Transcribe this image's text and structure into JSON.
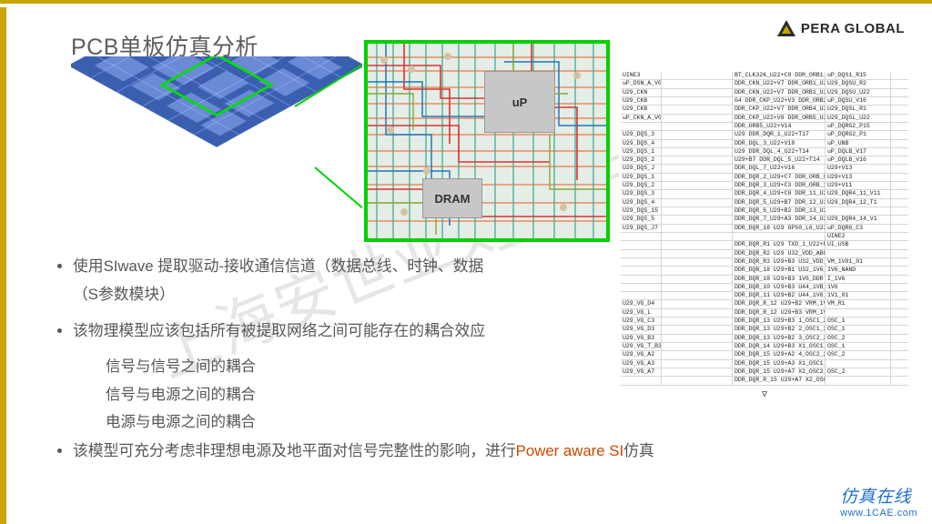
{
  "logo_text": "PERA GLOBAL",
  "title": "PCB单板仿真分析",
  "chips": {
    "up": "uP",
    "dram": "DRAM"
  },
  "bullets": {
    "b1_pre": "使用SIwave 提取驱动-接收通信信道（数据总线、时钟、数据",
    "b1_suf": "（S参数模块）",
    "b2": "该物理模型应该包括所有被提取网络之间可能存在的耦合效应",
    "s1": "信号与信号之间的耦合",
    "s2": "信号与电源之间的耦合",
    "s3": "电源与电源之间的耦合",
    "b3_pre": "该模型可充分考虑非理想电源及地平面对信号完整性的影响，进行",
    "b3_red": "Power aware SI",
    "b3_suf": "仿真"
  },
  "watermark": "上海安世亚太",
  "footer": {
    "cn": "仿真在线",
    "url": "www.1CAE.com"
  },
  "netlist_rows": [
    [
      "UINE3",
      "",
      "BT_CLK32K_U22+C8  DDR_ORB1_U22+R15",
      "uP_DQS1_R15"
    ],
    [
      "uP_DSN_A_V017",
      "",
      "DDR_CKN_U22+V7   DDR_ORB1_U22+R15",
      "U29_DQSU_R2"
    ],
    [
      "U29_CKN",
      "",
      "DDR_CKN_U22+V7   DDR_ORB1_U22+R16",
      "U29_DQSU_U22"
    ],
    [
      "U29_CKB",
      "",
      "G4  DDR_CKP_U22+V3   DDR_ORB2_U22+T15",
      "uP_DQSU_V16"
    ],
    [
      "U29_CKB",
      "",
      "DDR_CKP_U22+V7   DDR_ORB4_U22+V15",
      "U29_DQSL_R1"
    ],
    [
      "uP_CKN_A_V017",
      "",
      "DDR_CKP_U22+V8   DDR_ORB5_U22+V15",
      "U29_DQSL_U22"
    ],
    [
      "",
      "",
      "DDR_ORB5_U22+V14",
      "uP_DQRG2_P15"
    ],
    [
      "U29_DQS_3",
      "",
      "U29   DDR_DQR_1_U22+T17",
      "uP_DQRG2_P1"
    ],
    [
      "U29_DQS_4",
      "",
      "DDR_DQL_3_U22+V18",
      "uP_UNB"
    ],
    [
      "U29_DQS_1",
      "",
      "U29   DDR_DQL_4_U22+T14",
      "uP_DQLB_V17"
    ],
    [
      "U29_DQS_2",
      "",
      "U29+B7 DDR_DQL_5_U22+T14",
      "uP_DQLB_V16"
    ],
    [
      "U29_DQS_J",
      "",
      "DDR_DQL_7_U22+V16",
      "U29+V13"
    ],
    [
      "U29_DQS_1",
      "",
      "DDR_DQR_2_U29+C7 DDR_ORB_8_U22+V13",
      "U29+V13"
    ],
    [
      "U29_DQS_2",
      "",
      "DDR_DQR_3_U29+C3 DDR_ORB_18_U22+V11",
      "U29+V11"
    ],
    [
      "U29_DQS_3",
      "",
      "DDR_DQR_4_U29+C8 DDR_11_U22+V12",
      "U29_DQR4_11_V11"
    ],
    [
      "U29_DQS_4",
      "",
      "DDR_DQR_5_U29+B7 DDR_12_U22+V13",
      "U29_DQR4_12_T1"
    ],
    [
      "U29_DQS_15",
      "",
      "DDR_DQR_6_U29+B2 DDR_13_U22+V12",
      ""
    ],
    [
      "U29_DQS_5",
      "",
      "DDR_DQR_7_U29+A3 DDR_14_U22+V12",
      "U29_DQR4_14_V1"
    ],
    [
      "U29_DQS_J7",
      "",
      "DDR_DQR_18  U29   GPS0_L6_U22+R1",
      "uP_DQRG_C3"
    ],
    [
      "",
      "",
      "",
      "UINE2"
    ],
    [
      "",
      "",
      "DDR_DQR_R1  U29   TXD_1_U22+R5",
      "UI_USB"
    ],
    [
      "",
      "",
      "DDR_DQR_R2  U29   U32_VDD_ABCDED",
      ""
    ],
    [
      "",
      "",
      "DDR_DQR_R3  U29+B3 U32_VDD_CORE",
      "VM_1V01_01"
    ],
    [
      "",
      "",
      "DDR_DQR_18  U29+B1 U32_1V6_NAND",
      "1V6_NAND"
    ],
    [
      "",
      "",
      "DDR_DQR_18  U29+B3 1V6_DDR",
      "I_1V6"
    ],
    [
      "",
      "",
      "DDR_DQR_10  U29+B3 U44_1VB_DDR",
      "1V6"
    ],
    [
      "",
      "",
      "DDR_DQR_11  U29+B2 U44_1V6_O2",
      "1V1_01"
    ],
    [
      "U29_VG_D4",
      "",
      "DDR_DQR_R_12  U29+B2 VRM_1V1",
      "VM_R1"
    ],
    [
      "U29_VG_L",
      "",
      "DDR_DQR_R_12  U29+B3 VRM_1V6",
      ""
    ],
    [
      "U29_VG_C3",
      "",
      "DDR_DQR_13  U29+B3 1_OSC1_26MHz",
      "OSC_1"
    ],
    [
      "U29_VG_D3",
      "",
      "DDR_DQR_13  U29+B2 2_OSC1_26MHz",
      "OSC_1"
    ],
    [
      "U29_VG_B3",
      "",
      "DDR_DQR_13  U29+B2 3_OSC2_26MHz",
      "OSC_2"
    ],
    [
      "U29_VG_T_B3",
      "",
      "DDR_DQR_14  U29+B3 X1_OSC1_26MHz",
      "OSC_1"
    ],
    [
      "U29_VG_A2",
      "",
      "DDR_DQR_15  U29+A2 4_OSC2_26MHz",
      "OSC_2"
    ],
    [
      "U29_VG_A3",
      "",
      "DDR_DQR_15  U29+A3 X1_OSC1_26MHz",
      ""
    ],
    [
      "U29_VG_A7",
      "",
      "DDR_DQR_15  U29+A7 X2_OSC2_26MHz",
      "OSC_2"
    ],
    [
      "",
      "",
      "DDR_DQR_R_15 U29+A7 X2_OSC2_26MHz",
      ""
    ]
  ],
  "colors": {
    "accent": "#c9a500",
    "green_border": "#00d000",
    "text": "#575757",
    "red_text": "#c94a00",
    "footer_blue": "#2070d0",
    "wm_gray": "#e6e6e6"
  }
}
